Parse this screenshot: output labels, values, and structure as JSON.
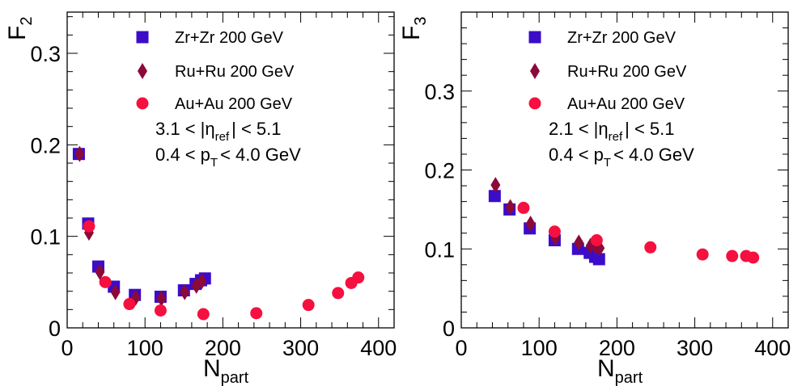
{
  "colors": {
    "zr": "#3B0CC9",
    "ru": "#8B0A3A",
    "au": "#F5103F"
  },
  "chart_data": [
    {
      "type": "scatter",
      "ylabel": {
        "main": "F",
        "sub": "2"
      },
      "xlabel": {
        "main": "N",
        "sub": "part"
      },
      "xlim": [
        0,
        420
      ],
      "ylim": [
        0,
        0.345
      ],
      "x_ticks": [
        0,
        100,
        200,
        300,
        400
      ],
      "y_ticks": [
        0,
        0.1,
        0.2,
        0.3
      ],
      "x_tick_labels": [
        "0",
        "100",
        "200",
        "300",
        "400"
      ],
      "y_tick_labels": [
        "0",
        "0.1",
        "0.2",
        "0.3"
      ],
      "grid": false,
      "legend_placement": "top-right",
      "annotations": [
        {
          "parts": [
            "3.1 < |η",
            "ref",
            "| < 5.1"
          ]
        },
        {
          "parts": [
            "0.4 < p",
            "T",
            "< 4.0 GeV"
          ]
        }
      ],
      "series": [
        {
          "name": "Zr+Zr 200 GeV",
          "marker": "square",
          "x": [
            15,
            27,
            40,
            60,
            87,
            120,
            150,
            165,
            172,
            177
          ],
          "y": [
            0.19,
            0.114,
            0.067,
            0.045,
            0.036,
            0.034,
            0.041,
            0.048,
            0.052,
            0.054
          ]
        },
        {
          "name": "Ru+Ru 200 GeV",
          "marker": "diamond",
          "x": [
            16,
            28,
            42,
            62,
            88,
            121,
            151,
            166,
            173
          ],
          "y": [
            0.19,
            0.104,
            0.061,
            0.039,
            0.033,
            0.032,
            0.039,
            0.046,
            0.051
          ]
        },
        {
          "name": "Au+Au 200 GeV",
          "marker": "circle",
          "x": [
            28,
            49,
            80,
            120,
            175,
            243,
            310,
            348,
            365,
            374
          ],
          "y": [
            0.111,
            0.05,
            0.026,
            0.019,
            0.015,
            0.016,
            0.025,
            0.038,
            0.049,
            0.055
          ]
        }
      ]
    },
    {
      "type": "scatter",
      "ylabel": {
        "main": "F",
        "sub": "3"
      },
      "xlabel": {
        "main": "N",
        "sub": "part"
      },
      "xlim": [
        0,
        420
      ],
      "ylim": [
        0,
        0.4
      ],
      "x_ticks": [
        0,
        100,
        200,
        300,
        400
      ],
      "y_ticks": [
        0,
        0.1,
        0.2,
        0.3
      ],
      "x_tick_labels": [
        "0",
        "100",
        "200",
        "300",
        "400"
      ],
      "y_tick_labels": [
        "0",
        "0.1",
        "0.2",
        "0.3"
      ],
      "grid": false,
      "legend_placement": "top-right",
      "annotations": [
        {
          "parts": [
            "2.1 < |η",
            "ref",
            "| < 5.1"
          ]
        },
        {
          "parts": [
            "0.4 < p",
            "T",
            "< 4.0 GeV"
          ]
        }
      ],
      "series": [
        {
          "name": "Zr+Zr 200 GeV",
          "marker": "square",
          "x": [
            43,
            62,
            88,
            120,
            150,
            165,
            172,
            177
          ],
          "y": [
            0.167,
            0.15,
            0.126,
            0.111,
            0.1,
            0.095,
            0.09,
            0.087
          ]
        },
        {
          "name": "Ru+Ru 200 GeV",
          "marker": "diamond",
          "x": [
            44,
            63,
            89,
            121,
            151,
            166,
            173,
            178
          ],
          "y": [
            0.181,
            0.153,
            0.132,
            0.114,
            0.108,
            0.104,
            0.103,
            0.101
          ]
        },
        {
          "name": "Au+Au 200 GeV",
          "marker": "circle",
          "x": [
            80,
            120,
            174,
            243,
            310,
            348,
            366,
            375
          ],
          "y": [
            0.152,
            0.122,
            0.111,
            0.102,
            0.093,
            0.091,
            0.091,
            0.089
          ]
        }
      ]
    }
  ]
}
